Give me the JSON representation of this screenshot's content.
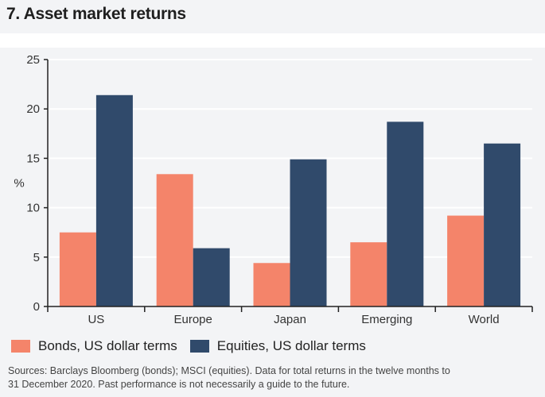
{
  "title": "7. Asset market returns",
  "chart_data": {
    "type": "bar",
    "title": "7. Asset market returns",
    "ylabel": "%",
    "xlabel": "",
    "ylim": [
      0,
      25
    ],
    "yticks": [
      0,
      5,
      10,
      15,
      20,
      25
    ],
    "grid": true,
    "legend_placement": "bottom",
    "categories": [
      "US",
      "Europe",
      "Japan",
      "Emerging",
      "World"
    ],
    "series": [
      {
        "name": "Bonds, US dollar terms",
        "color": "#f4846a",
        "values": [
          7.5,
          13.4,
          4.4,
          6.5,
          9.2
        ]
      },
      {
        "name": "Equities, US dollar terms",
        "color": "#304a6b",
        "values": [
          21.4,
          5.9,
          14.9,
          18.7,
          16.5
        ]
      }
    ]
  },
  "source": {
    "line1": "Sources: Barclays Bloomberg (bonds); MSCI (equities). Data for total returns in the twelve months to",
    "line2": "31 December 2020. Past performance is not necessarily a guide to the future."
  }
}
